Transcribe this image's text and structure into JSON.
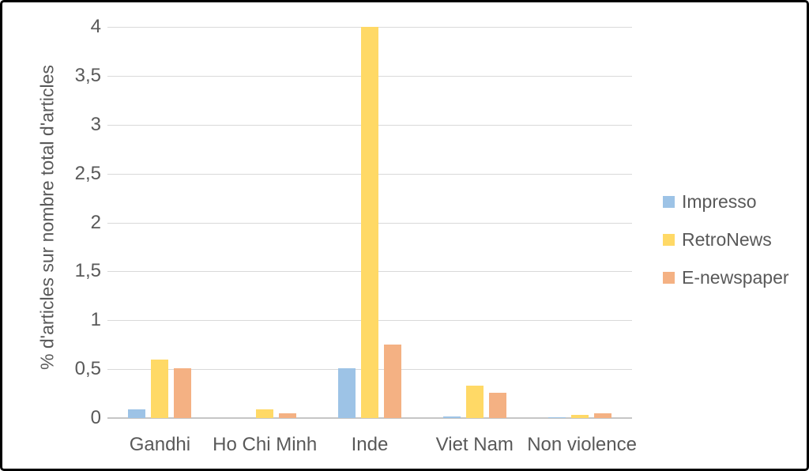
{
  "frame": {
    "background": "#ffffff",
    "border_color": "#000000"
  },
  "colors": {
    "gridline": "#d9d9d9",
    "axis_line": "#c6c6c6",
    "text": "#595959",
    "impresso_blue": "#9dc3e6",
    "retronews_yellow": "#ffd966",
    "enewspaper_orange": "#f4b183"
  },
  "chart_data": {
    "type": "bar",
    "title": "",
    "xlabel": "",
    "ylabel": "% d'articles sur nombre total d'articles",
    "categories": [
      "Gandhi",
      "Ho Chi Minh",
      "Inde",
      "Viet Nam",
      "Non violence"
    ],
    "series": [
      {
        "name": "Impresso",
        "color": "#9dc3e6",
        "values": [
          0.09,
          0.0,
          0.51,
          0.02,
          0.01
        ]
      },
      {
        "name": "RetroNews",
        "color": "#ffd966",
        "values": [
          0.6,
          0.09,
          4.0,
          0.33,
          0.03
        ]
      },
      {
        "name": "E-newspaper",
        "color": "#f4b183",
        "values": [
          0.51,
          0.05,
          0.75,
          0.26,
          0.05
        ]
      }
    ],
    "ylim": [
      0,
      4
    ],
    "ytick_step": 0.5,
    "ytick_labels": [
      "0",
      "0,5",
      "1",
      "1,5",
      "2",
      "2,5",
      "3",
      "3,5",
      "4"
    ],
    "grid": true,
    "legend_position": "right",
    "decimal_separator": ","
  }
}
